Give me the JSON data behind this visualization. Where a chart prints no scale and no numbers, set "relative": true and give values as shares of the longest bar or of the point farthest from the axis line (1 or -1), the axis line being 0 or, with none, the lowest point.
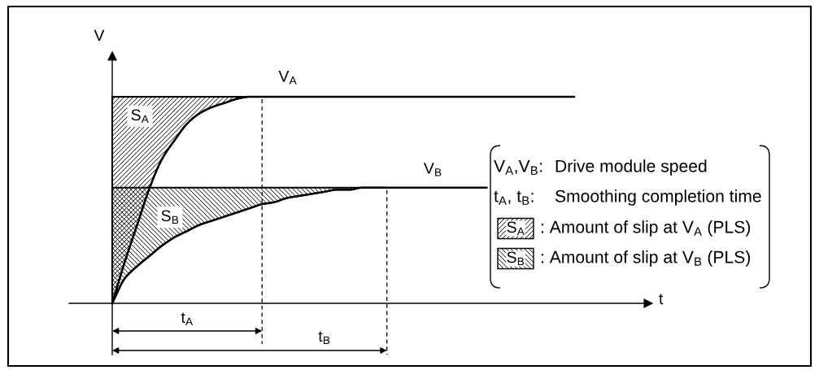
{
  "chart_data": {
    "type": "line",
    "xlabel": "t",
    "ylabel": "V",
    "relative": true,
    "categories": [
      null,
      null,
      null,
      null,
      null,
      null,
      null,
      null,
      null,
      null,
      null,
      null,
      null,
      null,
      null,
      null,
      null,
      null,
      null,
      null,
      null,
      null,
      null,
      null,
      null,
      null,
      null,
      null,
      null,
      null,
      null,
      null,
      null,
      null,
      null,
      null,
      null,
      null
    ],
    "series": [
      {
        "name": "V$_{A}$",
        "color": "#000000",
        "values": [
          0,
          0.2,
          0.38,
          0.56,
          0.7,
          0.79,
          0.87,
          0.92,
          0.95,
          0.97,
          0.99,
          1,
          1,
          1,
          1,
          1,
          1,
          1,
          1,
          1,
          1,
          1,
          1,
          1,
          1,
          1,
          1,
          1,
          1,
          1,
          1,
          1,
          1,
          1,
          1,
          1,
          1,
          1
        ],
        "lower": [
          0,
          0.2,
          0.38,
          0.56,
          0.7,
          0.79,
          0.87,
          0.92,
          0.95,
          0.97,
          0.99,
          1,
          1,
          null,
          null,
          null,
          null,
          null,
          null,
          null,
          null,
          null,
          null,
          null,
          null,
          null,
          null,
          null,
          null,
          null,
          null,
          null,
          null,
          null,
          null,
          null,
          null,
          null
        ],
        "upper": [
          1,
          1,
          1,
          1,
          1,
          1,
          1,
          1,
          1,
          1,
          1,
          1,
          1,
          null,
          null,
          null,
          null,
          null,
          null,
          null,
          null,
          null,
          null,
          null,
          null,
          null,
          null,
          null,
          null,
          null,
          null,
          null,
          null,
          null,
          null,
          null,
          null,
          null
        ]
      },
      {
        "name": "V$_{B}$",
        "color": "#000000",
        "values": [
          0,
          0.12,
          0.18,
          0.23,
          0.28,
          0.32,
          0.35,
          0.38,
          0.4,
          0.42,
          0.44,
          0.46,
          0.48,
          0.49,
          0.51,
          0.52,
          0.53,
          0.54,
          0.55,
          0.55,
          0.56,
          0.56,
          0.56,
          0.56,
          0.56,
          0.56,
          0.56,
          0.56,
          0.56,
          0.56,
          0.56,
          null,
          null,
          null,
          null,
          null,
          null,
          null
        ],
        "lower": [
          0,
          0.12,
          0.18,
          0.23,
          0.28,
          0.32,
          0.35,
          0.38,
          0.4,
          0.42,
          0.44,
          0.46,
          0.48,
          0.49,
          0.51,
          0.52,
          0.53,
          0.54,
          0.55,
          0.55,
          0.56,
          0.56,
          0.56,
          null,
          null,
          null,
          null,
          null,
          null,
          null,
          null,
          null,
          null,
          null,
          null,
          null,
          null,
          null
        ],
        "upper": [
          0.56,
          0.56,
          0.56,
          0.56,
          0.56,
          0.56,
          0.56,
          0.56,
          0.56,
          0.56,
          0.56,
          0.56,
          0.56,
          0.56,
          0.56,
          0.56,
          0.56,
          0.56,
          0.56,
          0.56,
          0.56,
          0.56,
          0.56,
          null,
          null,
          null,
          null,
          null,
          null,
          null,
          null,
          null,
          null,
          null,
          null,
          null,
          null,
          null
        ]
      }
    ],
    "annotations": [
      "S$_{A}$",
      "S$_{B}$",
      "t$_{A}$",
      "t$_{B}$",
      "V$_{A}$,V$_{B}$:",
      "Drive module speed",
      "t$_{A}$, t$_{B}$:",
      "Smoothing completion time",
      "S$_{A}$",
      ": Amount of slip at V$_{A}$ (PLS)",
      "S$_{B}$",
      ": Amount of slip at V$_{B}$ (PLS)"
    ]
  }
}
